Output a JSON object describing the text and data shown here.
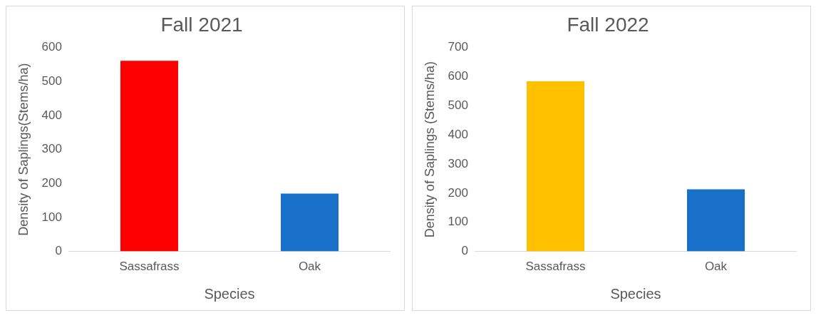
{
  "chart_data": [
    {
      "type": "bar",
      "title": "Fall 2021",
      "xlabel": "Species",
      "ylabel": "Density of Saplings(Stems/ha)",
      "categories": [
        "Sassafrass",
        "Oak"
      ],
      "values": [
        561,
        170
      ],
      "colors": [
        "#ff0000",
        "#1870c8"
      ],
      "ylim": [
        0,
        600
      ],
      "yticks": [
        0,
        100,
        200,
        300,
        400,
        500,
        600
      ],
      "grid": false
    },
    {
      "type": "bar",
      "title": "Fall 2022",
      "xlabel": "Species",
      "ylabel": "Density of Saplings (Stems/ha)",
      "categories": [
        "Sassafrass",
        "Oak"
      ],
      "values": [
        584,
        213
      ],
      "colors": [
        "#ffc000",
        "#1870c8"
      ],
      "ylim": [
        0,
        700
      ],
      "yticks": [
        0,
        100,
        200,
        300,
        400,
        500,
        600,
        700
      ],
      "grid": false
    }
  ]
}
